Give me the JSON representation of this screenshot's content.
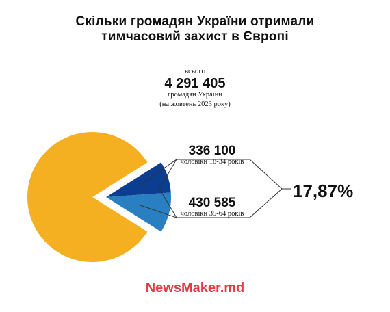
{
  "title_line1": "Скільки громадян України отримали",
  "title_line2": "тимчасовий захист в Європі",
  "total": {
    "caption": "всього",
    "value": "4 291 405",
    "sub1": "громадян України",
    "sub2": "(на жовтень 2023 року)"
  },
  "segments": [
    {
      "value": "336 100",
      "desc": "чоловіки 18-34 років"
    },
    {
      "value": "430 585",
      "desc": "чоловіки 35-64 років"
    }
  ],
  "share_percent": "17,87%",
  "source": "NewsMaker.md",
  "colors": {
    "rest": "#f5b021",
    "group_18_34": "#0b3d91",
    "group_35_64": "#2a7fc1",
    "source": "#e63946"
  },
  "chart_data": {
    "type": "pie",
    "total": 4291405,
    "slices": [
      {
        "value": 336100,
        "label": "чоловіки 18-34 років"
      },
      {
        "value": 430585,
        "label": "чоловіки 35-64 років"
      },
      {
        "value": 3524720
      }
    ]
  }
}
